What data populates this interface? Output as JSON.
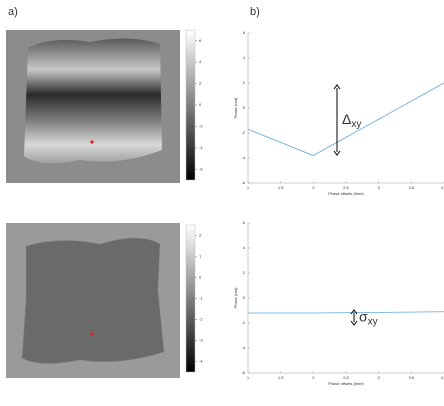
{
  "figure": {
    "panel_labels": [
      "a)",
      "b)"
    ],
    "colorbars": [
      {
        "ticks": [
          6,
          4,
          2,
          0,
          -2,
          -4,
          -6
        ],
        "lim": [
          -7,
          7
        ]
      },
      {
        "ticks": [
          2,
          1,
          0,
          -1,
          -2,
          -3,
          -4
        ],
        "lim": [
          -4.5,
          2.5
        ]
      }
    ]
  },
  "chart_data": [
    {
      "type": "line",
      "ylabel": "Phase (rad)",
      "xlabel": "Phase offsets (time)",
      "x": [
        1,
        2,
        3,
        4
      ],
      "series": [
        {
          "color": "#5fa8d8",
          "values": [
            -1.7,
            -3.8,
            -0.9,
            2.0
          ]
        }
      ],
      "xlim": [
        1,
        4
      ],
      "xticks": [
        1,
        1.5,
        2,
        2.5,
        3,
        3.5,
        4
      ],
      "ylim": [
        -6,
        6
      ],
      "yticks": [
        6,
        4,
        2,
        0,
        -2,
        -4,
        -6
      ],
      "annotation": {
        "symbol": "Δ",
        "subscript": "xy"
      }
    },
    {
      "type": "line",
      "ylabel": "Phase (rad)",
      "xlabel": "Phase offsets (time)",
      "x": [
        1,
        2,
        3,
        4
      ],
      "series": [
        {
          "color": "#5fa8d8",
          "values": [
            -1.2,
            -1.2,
            -1.15,
            -1.1
          ]
        }
      ],
      "xlim": [
        1,
        4
      ],
      "xticks": [
        1,
        1.5,
        2,
        2.5,
        3,
        3.5,
        4
      ],
      "ylim": [
        -6,
        6
      ],
      "yticks": [
        6,
        4,
        2,
        0,
        -2,
        -4,
        -6
      ],
      "annotation": {
        "symbol": "σ",
        "subscript": "xy"
      }
    }
  ]
}
